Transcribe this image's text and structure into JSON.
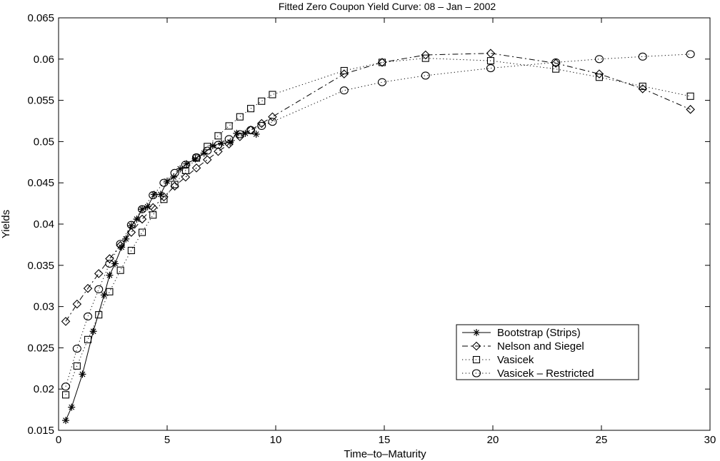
{
  "chart_data": {
    "type": "line",
    "title": "Fitted Zero Coupon Yield Curve: 08 – Jan – 2002",
    "xlabel": "Time–to–Maturity",
    "ylabel": "Yields",
    "xlim": [
      0,
      30
    ],
    "ylim": [
      0.015,
      0.065
    ],
    "xticks": [
      0,
      5,
      10,
      15,
      20,
      25,
      30
    ],
    "xtick_labels": [
      "0",
      "5",
      "10",
      "15",
      "20",
      "25",
      "30"
    ],
    "yticks": [
      0.015,
      0.02,
      0.025,
      0.03,
      0.035,
      0.04,
      0.045,
      0.05,
      0.055,
      0.06,
      0.065
    ],
    "ytick_labels": [
      "0.015",
      "0.02",
      "0.025",
      "0.03",
      "0.035",
      "0.04",
      "0.045",
      "0.05",
      "0.055",
      "0.06",
      "0.065"
    ],
    "grid": false,
    "legend_position": "bottom-right",
    "series": [
      {
        "name": "Bootstrap (Strips)",
        "line": "solid",
        "marker": "asterisk",
        "color": "#000000",
        "x": [
          0.33,
          0.6,
          1.1,
          1.6,
          2.1,
          2.35,
          2.6,
          2.9,
          3.1,
          3.35,
          3.6,
          3.85,
          4.1,
          4.4,
          4.7,
          5.0,
          5.3,
          5.6,
          5.9,
          6.3,
          6.7,
          7.1,
          7.5,
          7.9,
          8.2,
          8.6,
          9.1
        ],
        "y": [
          0.0162,
          0.0178,
          0.0218,
          0.027,
          0.0314,
          0.0338,
          0.0352,
          0.0372,
          0.0382,
          0.0398,
          0.0406,
          0.0418,
          0.0421,
          0.0436,
          0.0436,
          0.0452,
          0.0457,
          0.0467,
          0.0473,
          0.0479,
          0.0486,
          0.0495,
          0.0498,
          0.0499,
          0.051,
          0.051,
          0.0509
        ]
      },
      {
        "name": "Nelson and Siegel",
        "line": "dashdot",
        "marker": "diamond",
        "color": "#000000",
        "x": [
          0.33,
          0.85,
          1.35,
          1.85,
          2.35,
          2.85,
          3.35,
          3.85,
          4.35,
          4.85,
          5.35,
          5.85,
          6.35,
          6.85,
          7.35,
          7.85,
          8.35,
          8.85,
          9.35,
          9.85,
          13.15,
          14.9,
          16.9,
          19.9,
          22.9,
          24.9,
          26.9,
          29.1
        ],
        "y": [
          0.0282,
          0.0303,
          0.0322,
          0.034,
          0.0358,
          0.0374,
          0.039,
          0.0406,
          0.042,
          0.0433,
          0.0446,
          0.0457,
          0.0468,
          0.0478,
          0.0488,
          0.0497,
          0.0506,
          0.0514,
          0.0522,
          0.053,
          0.0582,
          0.0596,
          0.0605,
          0.0607,
          0.0595,
          0.0582,
          0.0564,
          0.0539
        ]
      },
      {
        "name": "Vasicek",
        "line": "dotted",
        "marker": "square",
        "color": "#000000",
        "x": [
          0.33,
          0.85,
          1.35,
          1.85,
          2.35,
          2.85,
          3.35,
          3.85,
          4.35,
          4.85,
          5.35,
          5.85,
          6.35,
          6.85,
          7.35,
          7.85,
          8.35,
          8.85,
          9.35,
          9.85,
          13.15,
          14.9,
          16.9,
          19.9,
          22.9,
          24.9,
          26.9,
          29.1
        ],
        "y": [
          0.0193,
          0.0228,
          0.026,
          0.029,
          0.0318,
          0.0344,
          0.0368,
          0.039,
          0.0411,
          0.043,
          0.0448,
          0.0465,
          0.048,
          0.0494,
          0.0507,
          0.0519,
          0.053,
          0.054,
          0.0549,
          0.0557,
          0.0586,
          0.0596,
          0.0601,
          0.0598,
          0.0588,
          0.0578,
          0.0567,
          0.0555
        ]
      },
      {
        "name": "Vasicek – Restricted",
        "line": "dotted",
        "marker": "circle",
        "color": "#000000",
        "x": [
          0.33,
          0.85,
          1.35,
          1.85,
          2.35,
          2.85,
          3.35,
          3.85,
          4.35,
          4.85,
          5.35,
          5.85,
          6.35,
          6.85,
          7.35,
          7.85,
          8.35,
          8.85,
          9.35,
          9.85,
          13.15,
          14.9,
          16.9,
          19.9,
          22.9,
          24.9,
          26.9,
          29.1
        ],
        "y": [
          0.0203,
          0.0249,
          0.0288,
          0.0321,
          0.0352,
          0.0376,
          0.0399,
          0.0418,
          0.0435,
          0.045,
          0.0462,
          0.0472,
          0.0481,
          0.0489,
          0.0496,
          0.0503,
          0.0509,
          0.0514,
          0.0519,
          0.0524,
          0.0562,
          0.0572,
          0.058,
          0.0589,
          0.0596,
          0.06,
          0.0603,
          0.0606
        ]
      }
    ]
  }
}
